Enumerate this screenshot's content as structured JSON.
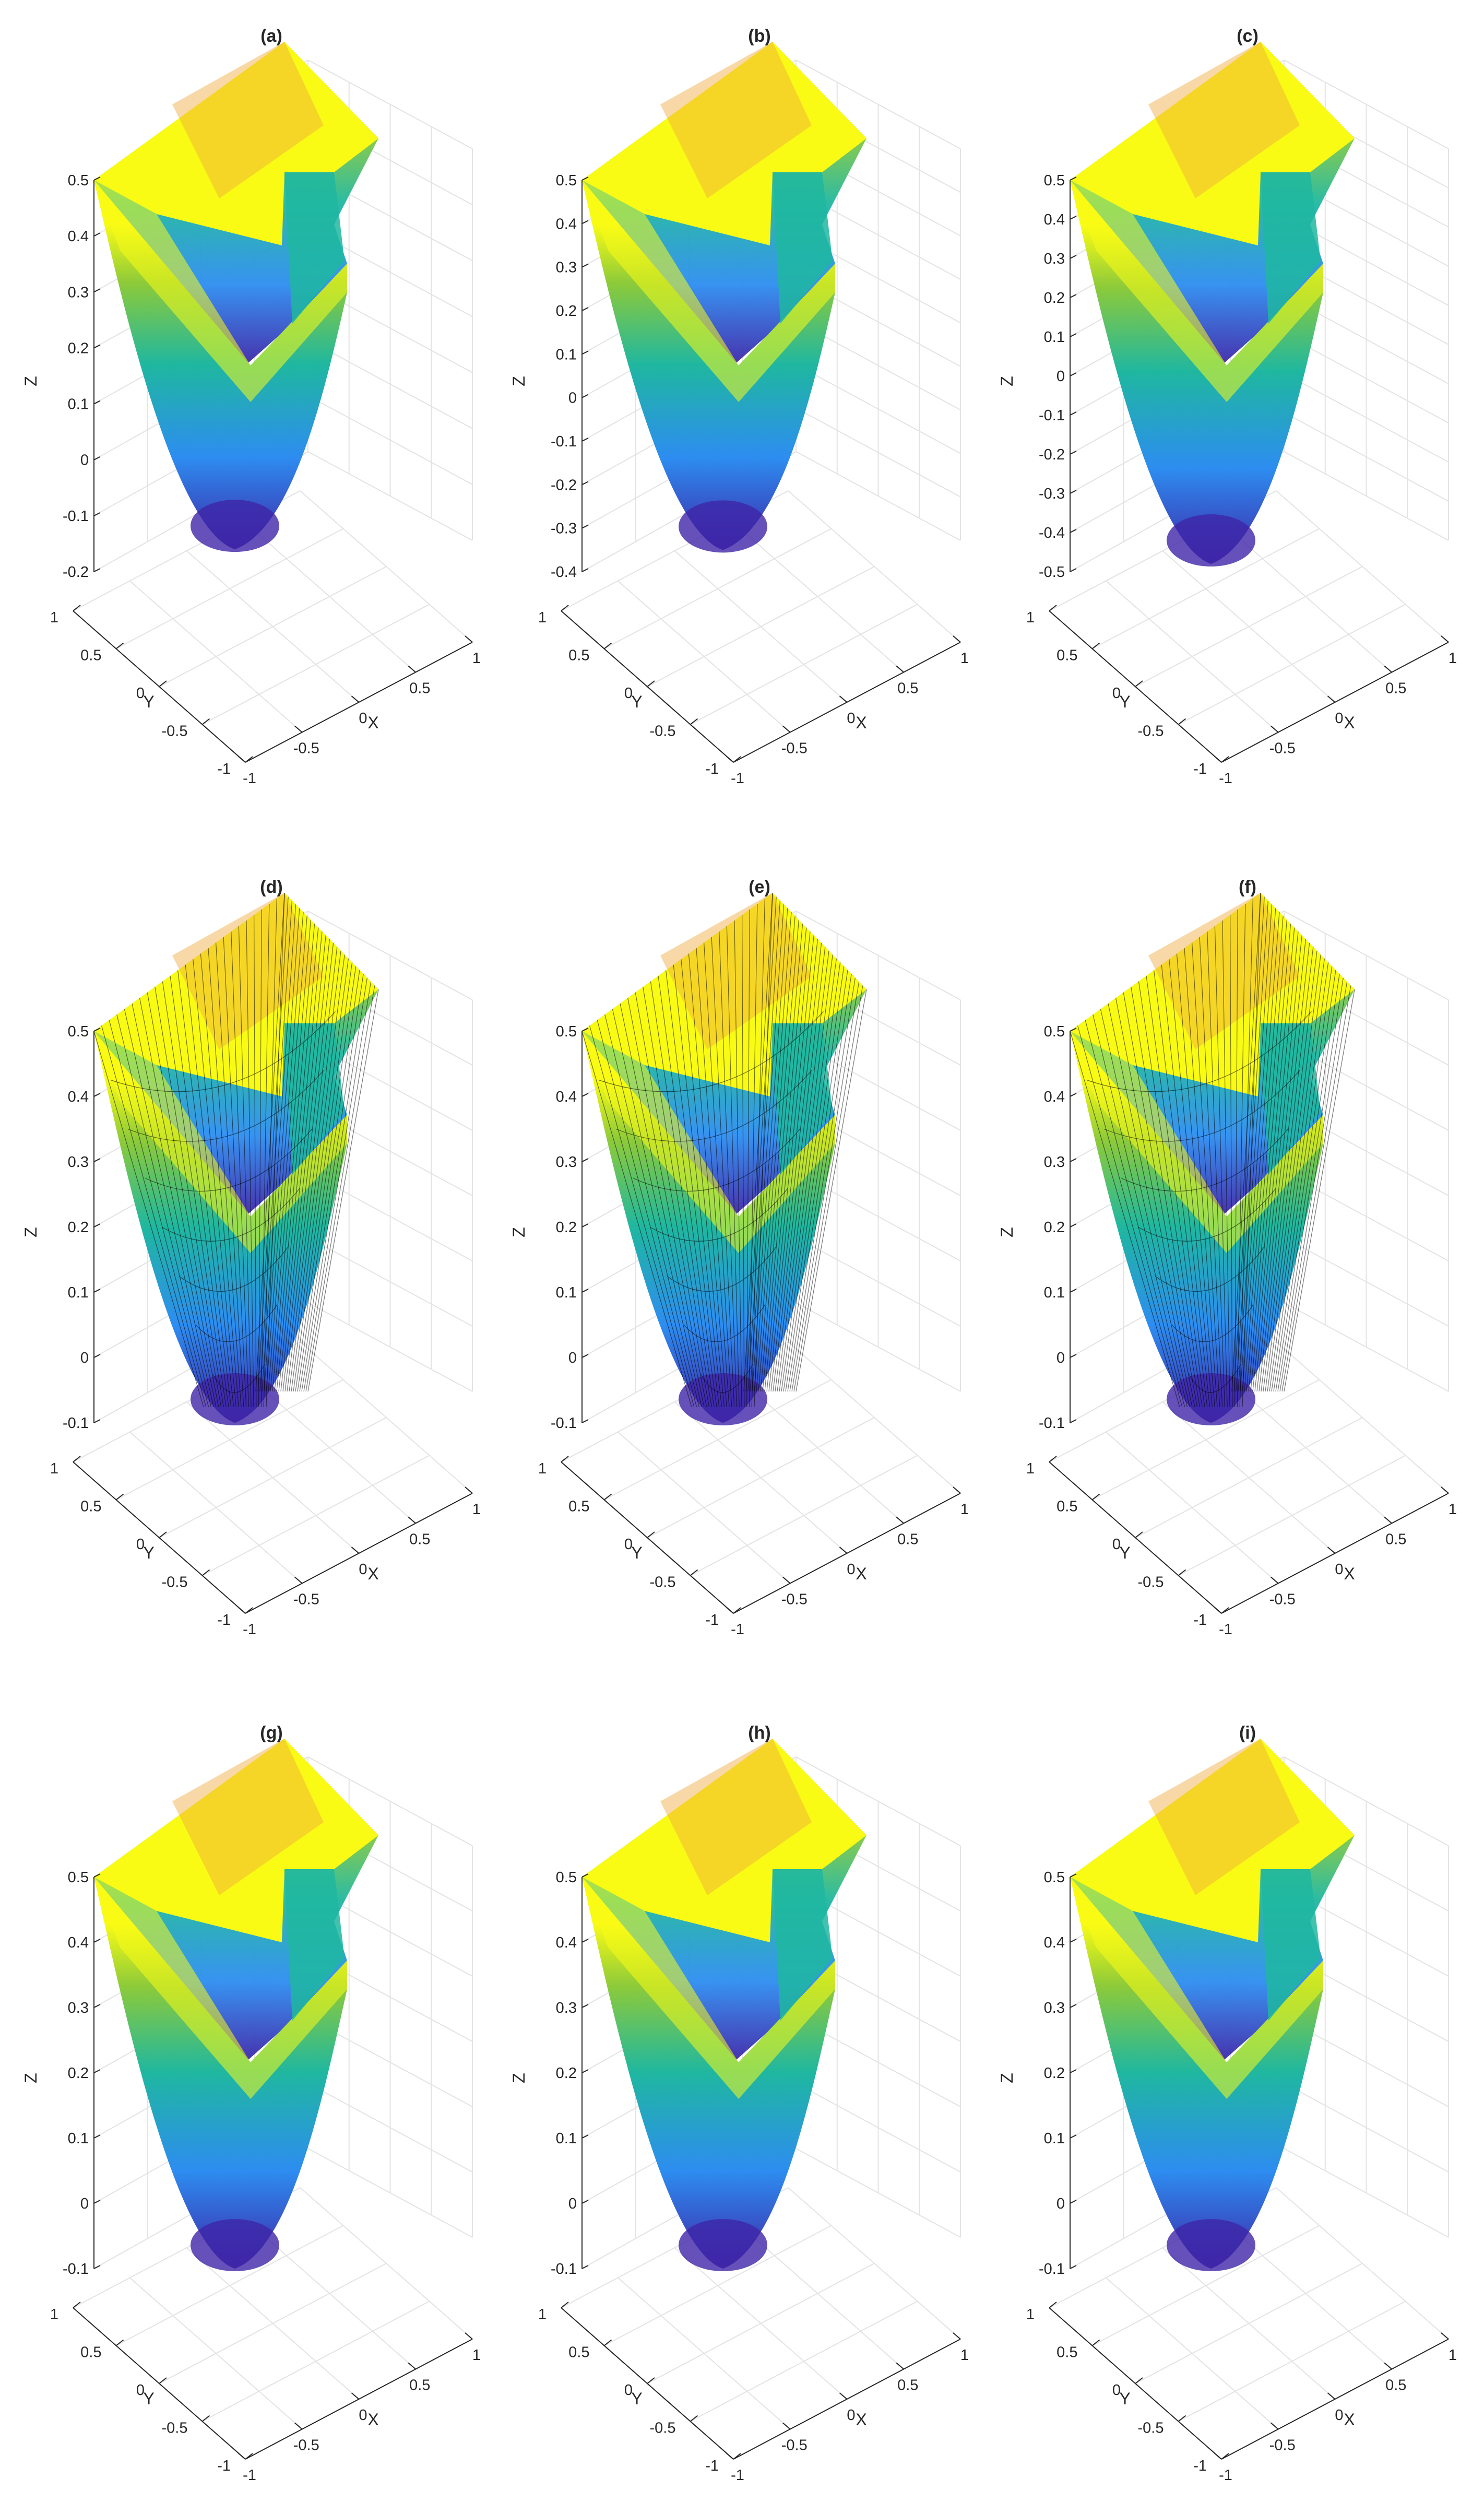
{
  "figure": {
    "colors": {
      "low": "#3e26a8",
      "mid_low": "#2d8df0",
      "mid": "#1fb7a0",
      "mid_high": "#8cca3a",
      "high": "#f9fb15",
      "orange": "#f0a93b",
      "grid": "#e3e3e3",
      "axis": "#262626",
      "edges": "#000000"
    }
  },
  "chart_data": [
    {
      "type": "surface",
      "title": "(a)",
      "xlabel": "X",
      "ylabel": "Y",
      "zlabel": "Z",
      "xlim": [
        -1,
        1
      ],
      "ylim": [
        -1,
        1
      ],
      "zlim": [
        -0.2,
        0.5
      ],
      "x_ticks": [
        "-1",
        "-0.5",
        "0",
        "0.5",
        "1"
      ],
      "y_ticks": [
        "-1",
        "-0.5",
        "0",
        "0.5",
        "1"
      ],
      "z_ticks": [
        "-0.2",
        "-0.1",
        "0",
        "0.1",
        "0.2",
        "0.3",
        "0.4",
        "0.5"
      ],
      "z_min": -0.16,
      "edges_visible": false,
      "grid": true
    },
    {
      "type": "surface",
      "title": "(b)",
      "xlabel": "X",
      "ylabel": "Y",
      "zlabel": "Z",
      "xlim": [
        -1,
        1
      ],
      "ylim": [
        -1,
        1
      ],
      "zlim": [
        -0.4,
        0.5
      ],
      "x_ticks": [
        "-1",
        "-0.5",
        "0",
        "0.5",
        "1"
      ],
      "y_ticks": [
        "-1",
        "-0.5",
        "0",
        "0.5",
        "1"
      ],
      "z_ticks": [
        "-0.4",
        "-0.3",
        "-0.2",
        "-0.1",
        "0",
        "0.1",
        "0.2",
        "0.3",
        "0.4",
        "0.5"
      ],
      "z_min": -0.35,
      "edges_visible": false,
      "grid": true
    },
    {
      "type": "surface",
      "title": "(c)",
      "xlabel": "X",
      "ylabel": "Y",
      "zlabel": "Z",
      "xlim": [
        -1,
        1
      ],
      "ylim": [
        -1,
        1
      ],
      "zlim": [
        -0.5,
        0.5
      ],
      "x_ticks": [
        "-1",
        "-0.5",
        "0",
        "0.5",
        "1"
      ],
      "y_ticks": [
        "-1",
        "-0.5",
        "0",
        "0.5",
        "1"
      ],
      "z_ticks": [
        "-0.5",
        "-0.4",
        "-0.3",
        "-0.2",
        "-0.1",
        "0",
        "0.1",
        "0.2",
        "0.3",
        "0.4",
        "0.5"
      ],
      "z_min": -0.48,
      "edges_visible": false,
      "grid": true
    },
    {
      "type": "surface",
      "title": "(d)",
      "xlabel": "X",
      "ylabel": "Y",
      "zlabel": "Z",
      "xlim": [
        -1,
        1
      ],
      "ylim": [
        -1,
        1
      ],
      "zlim": [
        -0.1,
        0.5
      ],
      "x_ticks": [
        "-1",
        "-0.5",
        "0",
        "0.5",
        "1"
      ],
      "y_ticks": [
        "-1",
        "-0.5",
        "0",
        "0.5",
        "1"
      ],
      "z_ticks": [
        "-0.1",
        "0",
        "0.1",
        "0.2",
        "0.3",
        "0.4",
        "0.5"
      ],
      "z_min": -0.1,
      "edges_visible": true,
      "grid": true
    },
    {
      "type": "surface",
      "title": "(e)",
      "xlabel": "X",
      "ylabel": "Y",
      "zlabel": "Z",
      "xlim": [
        -1,
        1
      ],
      "ylim": [
        -1,
        1
      ],
      "zlim": [
        -0.1,
        0.5
      ],
      "x_ticks": [
        "-1",
        "-0.5",
        "0",
        "0.5",
        "1"
      ],
      "y_ticks": [
        "-1",
        "-0.5",
        "0",
        "0.5",
        "1"
      ],
      "z_ticks": [
        "-0.1",
        "0",
        "0.1",
        "0.2",
        "0.3",
        "0.4",
        "0.5"
      ],
      "z_min": -0.17,
      "edges_visible": true,
      "grid": true
    },
    {
      "type": "surface",
      "title": "(f)",
      "xlabel": "X",
      "ylabel": "Y",
      "zlabel": "Z",
      "xlim": [
        -1,
        1
      ],
      "ylim": [
        -1,
        1
      ],
      "zlim": [
        -0.1,
        0.5
      ],
      "x_ticks": [
        "-1",
        "-0.5",
        "0",
        "0.5",
        "1"
      ],
      "y_ticks": [
        "-1",
        "-0.5",
        "0",
        "0.5",
        "1"
      ],
      "z_ticks": [
        "-0.1",
        "0",
        "0.1",
        "0.2",
        "0.3",
        "0.4",
        "0.5"
      ],
      "z_min": -0.2,
      "edges_visible": true,
      "grid": true
    },
    {
      "type": "surface",
      "title": "(g)",
      "xlabel": "X",
      "ylabel": "Y",
      "zlabel": "Z",
      "xlim": [
        -1,
        1
      ],
      "ylim": [
        -1,
        1
      ],
      "zlim": [
        -0.1,
        0.5
      ],
      "x_ticks": [
        "-1",
        "-0.5",
        "0",
        "0.5",
        "1"
      ],
      "y_ticks": [
        "-1",
        "-0.5",
        "0",
        "0.5",
        "1"
      ],
      "z_ticks": [
        "-0.1",
        "0",
        "0.1",
        "0.2",
        "0.3",
        "0.4",
        "0.5"
      ],
      "z_min": -0.1,
      "edges_visible": false,
      "grid": true
    },
    {
      "type": "surface",
      "title": "(h)",
      "xlabel": "X",
      "ylabel": "Y",
      "zlabel": "Z",
      "xlim": [
        -1,
        1
      ],
      "ylim": [
        -1,
        1
      ],
      "zlim": [
        -0.1,
        0.5
      ],
      "x_ticks": [
        "-1",
        "-0.5",
        "0",
        "0.5",
        "1"
      ],
      "y_ticks": [
        "-1",
        "-0.5",
        "0",
        "0.5",
        "1"
      ],
      "z_ticks": [
        "-0.1",
        "0",
        "0.1",
        "0.2",
        "0.3",
        "0.4",
        "0.5"
      ],
      "z_min": -0.17,
      "edges_visible": false,
      "grid": true
    },
    {
      "type": "surface",
      "title": "(i)",
      "xlabel": "X",
      "ylabel": "Y",
      "zlabel": "Z",
      "xlim": [
        -1,
        1
      ],
      "ylim": [
        -1,
        1
      ],
      "zlim": [
        -0.1,
        0.5
      ],
      "x_ticks": [
        "-1",
        "-0.5",
        "0",
        "0.5",
        "1"
      ],
      "y_ticks": [
        "-1",
        "-0.5",
        "0",
        "0.5",
        "1"
      ],
      "z_ticks": [
        "-0.1",
        "0",
        "0.1",
        "0.2",
        "0.3",
        "0.4",
        "0.5"
      ],
      "z_min": -0.2,
      "edges_visible": false,
      "grid": true
    }
  ]
}
